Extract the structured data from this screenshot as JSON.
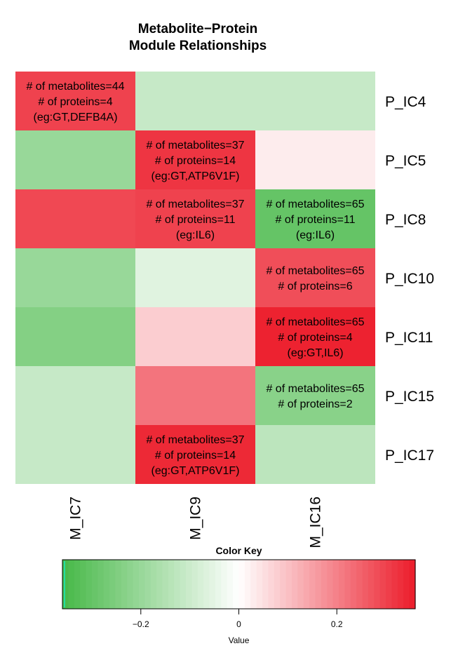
{
  "chart_data": {
    "type": "heatmap",
    "title": [
      "Metabolite−Protein",
      "Module Relationships"
    ],
    "columns": [
      "M_IC7",
      "M_IC9",
      "M_IC16"
    ],
    "rows": [
      "P_IC4",
      "P_IC5",
      "P_IC8",
      "P_IC10",
      "P_IC11",
      "P_IC15",
      "P_IC17"
    ],
    "values": [
      [
        0.3,
        -0.11,
        -0.11
      ],
      [
        -0.2,
        0.32,
        0.03
      ],
      [
        0.29,
        0.3,
        -0.3
      ],
      [
        -0.2,
        -0.06,
        0.28
      ],
      [
        -0.24,
        0.08,
        0.35
      ],
      [
        -0.11,
        0.22,
        -0.23
      ],
      [
        -0.11,
        0.34,
        -0.13
      ]
    ],
    "cell_labels": [
      [
        [
          "# of metabolites=44",
          "# of proteins=4",
          "(eg:GT,DEFB4A)"
        ],
        [],
        []
      ],
      [
        [],
        [
          "# of metabolites=37",
          "# of proteins=14",
          "(eg:GT,ATP6V1F)"
        ],
        []
      ],
      [
        [],
        [
          "# of metabolites=37",
          "# of proteins=11",
          "(eg:IL6)"
        ],
        [
          "# of metabolites=65",
          "# of proteins=11",
          "(eg:IL6)"
        ]
      ],
      [
        [],
        [],
        [
          "# of metabolites=65",
          "# of proteins=6"
        ]
      ],
      [
        [],
        [],
        [
          "# of metabolites=65",
          "# of proteins=4",
          "(eg:GT,IL6)"
        ]
      ],
      [
        [],
        [],
        [
          "# of metabolites=65",
          "# of proteins=2"
        ]
      ],
      [
        [],
        [
          "# of metabolites=37",
          "# of proteins=14",
          "(eg:GT,ATP6V1F)"
        ],
        []
      ]
    ],
    "color_key": {
      "title": "Color Key",
      "xlabel": "Value",
      "range": [
        -0.36,
        0.36
      ],
      "ticks": [
        -0.2,
        0,
        0.2
      ],
      "tick_labels": [
        "−0.2",
        "0",
        "0.2"
      ],
      "low_color": "#46b847",
      "mid_color": "#ffffff",
      "high_color": "#ec1c2a",
      "histogram_line_color": "#00ffff"
    }
  }
}
